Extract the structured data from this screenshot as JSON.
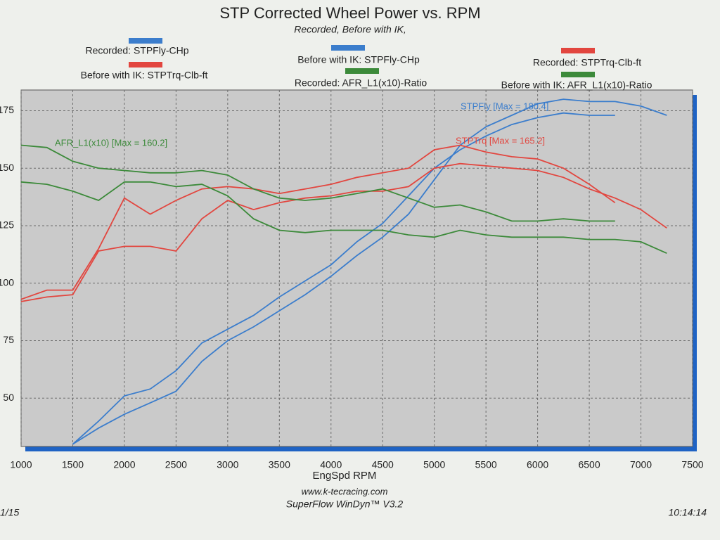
{
  "chart_data": {
    "type": "line",
    "title": "STP Corrected Wheel Power vs. RPM",
    "subtitle": "Recorded, Before with IK,",
    "x_label": "EngSpd RPM",
    "annotations": [
      "AFR_L1(x10) [Max = 160.2]",
      "STPFly [Max = 180.4]",
      "STPTrq [Max = 165.2]"
    ],
    "footer": [
      "www.k-tecracing.com",
      "SuperFlow WinDyn™ V3.2"
    ],
    "date": "1/15",
    "time": "10:14:14",
    "x": [
      1000,
      1250,
      1500,
      1750,
      2000,
      2250,
      2500,
      2750,
      3000,
      3250,
      3500,
      3750,
      4000,
      4250,
      4500,
      4750,
      5000,
      5250,
      5500,
      5750,
      6000,
      6250,
      6500,
      6750,
      7000,
      7250
    ],
    "xlim": [
      1000,
      7500
    ],
    "xticks": [
      1000,
      1500,
      2000,
      2500,
      3000,
      3500,
      4000,
      4500,
      5000,
      5500,
      6000,
      6500,
      7000,
      7500
    ],
    "ylim": [
      29,
      184
    ],
    "yticks": [
      50,
      75,
      100,
      125,
      150,
      175
    ],
    "grid": true,
    "series": [
      {
        "name": "Recorded: STPFly-CHp",
        "color": "#3b7dcc",
        "values": [
          null,
          null,
          30,
          40,
          51,
          54,
          62,
          74,
          80,
          86,
          94,
          101,
          108,
          118,
          126,
          138,
          150,
          158,
          164,
          169,
          172,
          174,
          173,
          173,
          null,
          null
        ]
      },
      {
        "name": "Before with IK: STPFly-CHp",
        "color": "#3b7dcc",
        "values": [
          null,
          null,
          30,
          37,
          43,
          48,
          53,
          66,
          75,
          81,
          88,
          95,
          103,
          112,
          120,
          130,
          145,
          160,
          168,
          173,
          178,
          180,
          179,
          179,
          177,
          173
        ]
      },
      {
        "name": "Recorded: STPTrq-Clb-ft",
        "color": "#e2463f",
        "values": [
          93,
          97,
          97,
          115,
          137,
          130,
          136,
          141,
          142,
          141,
          139,
          141,
          143,
          146,
          148,
          150,
          158,
          160,
          157,
          155,
          154,
          150,
          143,
          135,
          null,
          null
        ]
      },
      {
        "name": "Before with IK: STPTrq-Clb-ft",
        "color": "#e2463f",
        "values": [
          92,
          94,
          95,
          114,
          116,
          116,
          114,
          128,
          136,
          132,
          135,
          137,
          138,
          140,
          140,
          142,
          150,
          152,
          151,
          150,
          149,
          146,
          141,
          137,
          132,
          124
        ]
      },
      {
        "name": "Recorded: AFR_L1(x10)-Ratio",
        "color": "#3c8a3a",
        "values": [
          160,
          159,
          153,
          150,
          149,
          148,
          148,
          149,
          147,
          141,
          137,
          136,
          137,
          139,
          141,
          137,
          133,
          134,
          131,
          127,
          127,
          128,
          127,
          127,
          null,
          null
        ]
      },
      {
        "name": "Before with IK: AFR_L1(x10)-Ratio",
        "color": "#3c8a3a",
        "values": [
          144,
          143,
          140,
          136,
          144,
          144,
          142,
          143,
          138,
          128,
          123,
          122,
          123,
          123,
          123,
          121,
          120,
          123,
          121,
          120,
          120,
          120,
          119,
          119,
          118,
          113
        ]
      }
    ]
  }
}
